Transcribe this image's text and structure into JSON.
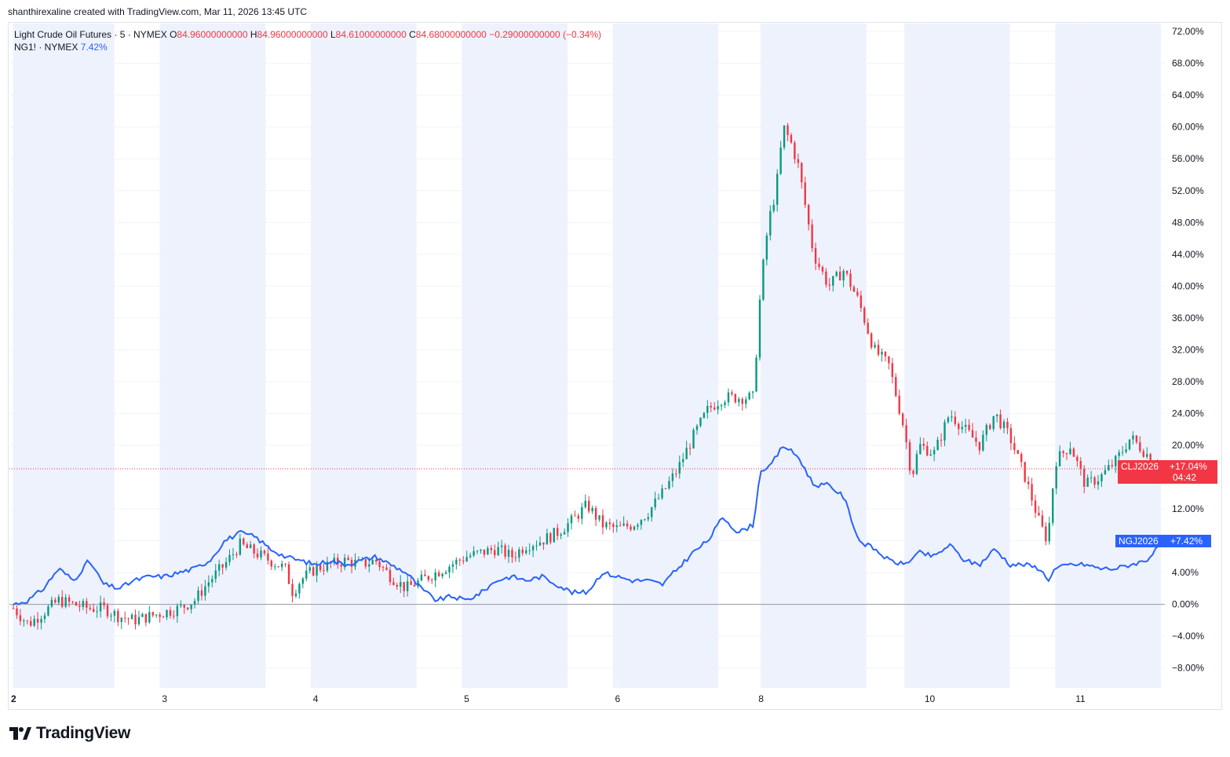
{
  "header": {
    "credit": "shanthirexaline created with TradingView.com, Mar 11, 2026 13:45 UTC"
  },
  "legend": {
    "main_name": "Light Crude Oil Futures · 5 · NYMEX",
    "o_label": "O",
    "o_value": "84.96000000000",
    "h_label": "H",
    "h_value": "84.96000000000",
    "l_label": "L",
    "l_value": "84.61000000000",
    "c_label": "C",
    "c_value": "84.68000000000",
    "change": "−0.29000000000 (−0.34%)",
    "second_name": "NG1! · NYMEX",
    "second_value": "7.42%"
  },
  "badges": {
    "cl_symbol": "CLJ2026",
    "cl_value": "+17.04%",
    "cl_timer": "04:42",
    "ng_symbol": "NGJ2026",
    "ng_value": "+7.42%"
  },
  "brand": {
    "name": "TradingView"
  },
  "colors": {
    "up": "#089981",
    "down": "#f23645",
    "ng_line": "#2962ff",
    "session_shade": "#eef2fd",
    "grid": "#f0f3fa"
  },
  "chart_data": {
    "type": "line",
    "y_unit": "percent change",
    "y_ticks": [
      "72.00%",
      "68.00%",
      "64.00%",
      "60.00%",
      "56.00%",
      "52.00%",
      "48.00%",
      "44.00%",
      "40.00%",
      "36.00%",
      "32.00%",
      "28.00%",
      "24.00%",
      "20.00%",
      "12.00%",
      "8.00%",
      "4.00%",
      "0.00%",
      "−4.00%",
      "−8.00%"
    ],
    "ylim": [
      -10.5,
      73
    ],
    "x_tick_labels": [
      "2",
      "3",
      "4",
      "5",
      "6",
      "8",
      "10",
      "11"
    ],
    "x_tick_positions": [
      0.0,
      1.0,
      2.0,
      3.0,
      4.0,
      4.95,
      6.05,
      7.05
    ],
    "xlim": [
      0.0,
      7.6
    ],
    "series": [
      {
        "name": "CLJ2026",
        "style": "candlestick",
        "x": [
          0.0,
          0.1,
          0.2,
          0.3,
          0.4,
          0.5,
          0.6,
          0.7,
          0.8,
          0.9,
          1.0,
          1.1,
          1.2,
          1.3,
          1.4,
          1.5,
          1.6,
          1.7,
          1.8,
          1.85,
          1.9,
          2.0,
          2.1,
          2.2,
          2.3,
          2.4,
          2.5,
          2.6,
          2.7,
          2.8,
          2.9,
          3.0,
          3.1,
          3.2,
          3.3,
          3.4,
          3.5,
          3.6,
          3.7,
          3.8,
          3.9,
          4.0,
          4.1,
          4.2,
          4.3,
          4.4,
          4.5,
          4.6,
          4.7,
          4.8,
          4.9,
          4.95,
          5.0,
          5.05,
          5.1,
          5.15,
          5.2,
          5.3,
          5.4,
          5.5,
          5.6,
          5.7,
          5.8,
          5.9,
          5.95,
          6.0,
          6.1,
          6.2,
          6.3,
          6.4,
          6.5,
          6.6,
          6.7,
          6.8,
          6.85,
          6.9,
          7.0,
          7.1,
          7.2,
          7.3,
          7.4,
          7.5,
          7.6
        ],
        "values": [
          -0.5,
          -2.5,
          -1.0,
          0.5,
          0.0,
          -0.5,
          -0.5,
          -1.5,
          -2.0,
          -1.5,
          -1.0,
          -0.5,
          0.5,
          3.0,
          5.0,
          7.5,
          6.5,
          5.5,
          4.5,
          1.5,
          3.0,
          4.5,
          5.0,
          5.5,
          5.0,
          5.5,
          3.5,
          2.0,
          3.0,
          4.0,
          5.0,
          6.0,
          6.5,
          7.0,
          6.0,
          7.5,
          8.0,
          9.0,
          10.5,
          12.5,
          10.0,
          9.5,
          10.0,
          11.5,
          14.0,
          17.0,
          21.0,
          24.5,
          26.0,
          26.0,
          26.0,
          40.0,
          48.0,
          52.0,
          60.0,
          58.0,
          55.0,
          44.0,
          40.0,
          42.0,
          38.0,
          32.0,
          30.0,
          22.0,
          16.0,
          20.0,
          19.0,
          24.0,
          22.0,
          20.0,
          24.0,
          21.0,
          16.0,
          10.0,
          8.0,
          18.0,
          20.0,
          15.0,
          16.0,
          18.0,
          21.0,
          19.0,
          17.04
        ]
      },
      {
        "name": "NGJ2026",
        "style": "line",
        "x": [
          0.0,
          0.1,
          0.2,
          0.3,
          0.4,
          0.5,
          0.6,
          0.7,
          0.8,
          0.9,
          1.0,
          1.1,
          1.2,
          1.3,
          1.4,
          1.5,
          1.6,
          1.7,
          1.8,
          1.9,
          2.0,
          2.1,
          2.2,
          2.3,
          2.4,
          2.5,
          2.6,
          2.7,
          2.8,
          2.9,
          3.0,
          3.1,
          3.2,
          3.3,
          3.4,
          3.5,
          3.6,
          3.7,
          3.8,
          3.9,
          4.0,
          4.1,
          4.2,
          4.3,
          4.4,
          4.5,
          4.6,
          4.7,
          4.8,
          4.9,
          4.95,
          5.0,
          5.1,
          5.2,
          5.3,
          5.4,
          5.5,
          5.6,
          5.7,
          5.8,
          5.9,
          6.0,
          6.1,
          6.2,
          6.3,
          6.4,
          6.5,
          6.6,
          6.7,
          6.8,
          6.85,
          6.9,
          7.0,
          7.1,
          7.2,
          7.3,
          7.4,
          7.5,
          7.6
        ],
        "values": [
          0.0,
          0.5,
          2.0,
          4.5,
          3.0,
          5.5,
          2.5,
          2.0,
          3.0,
          3.5,
          3.5,
          4.0,
          4.5,
          5.5,
          8.0,
          9.0,
          8.5,
          7.0,
          6.0,
          5.5,
          5.0,
          5.5,
          5.0,
          5.5,
          6.0,
          5.0,
          4.0,
          2.0,
          0.5,
          1.0,
          0.5,
          1.5,
          3.0,
          3.5,
          3.0,
          3.5,
          2.5,
          1.5,
          1.5,
          4.0,
          3.5,
          3.0,
          3.0,
          2.5,
          4.5,
          6.5,
          8.0,
          11.0,
          9.0,
          10.0,
          17.0,
          17.0,
          20.0,
          18.5,
          15.0,
          15.0,
          13.5,
          8.0,
          7.0,
          5.5,
          5.0,
          6.5,
          6.0,
          7.5,
          5.5,
          5.0,
          7.0,
          5.0,
          5.0,
          4.5,
          3.0,
          4.5,
          5.0,
          5.0,
          4.5,
          4.5,
          5.0,
          5.5,
          7.42
        ]
      }
    ],
    "reference_line": {
      "value": 17.04,
      "style": "dotted"
    },
    "zero_line": 0,
    "grid": true,
    "legend_position": "top-left"
  }
}
